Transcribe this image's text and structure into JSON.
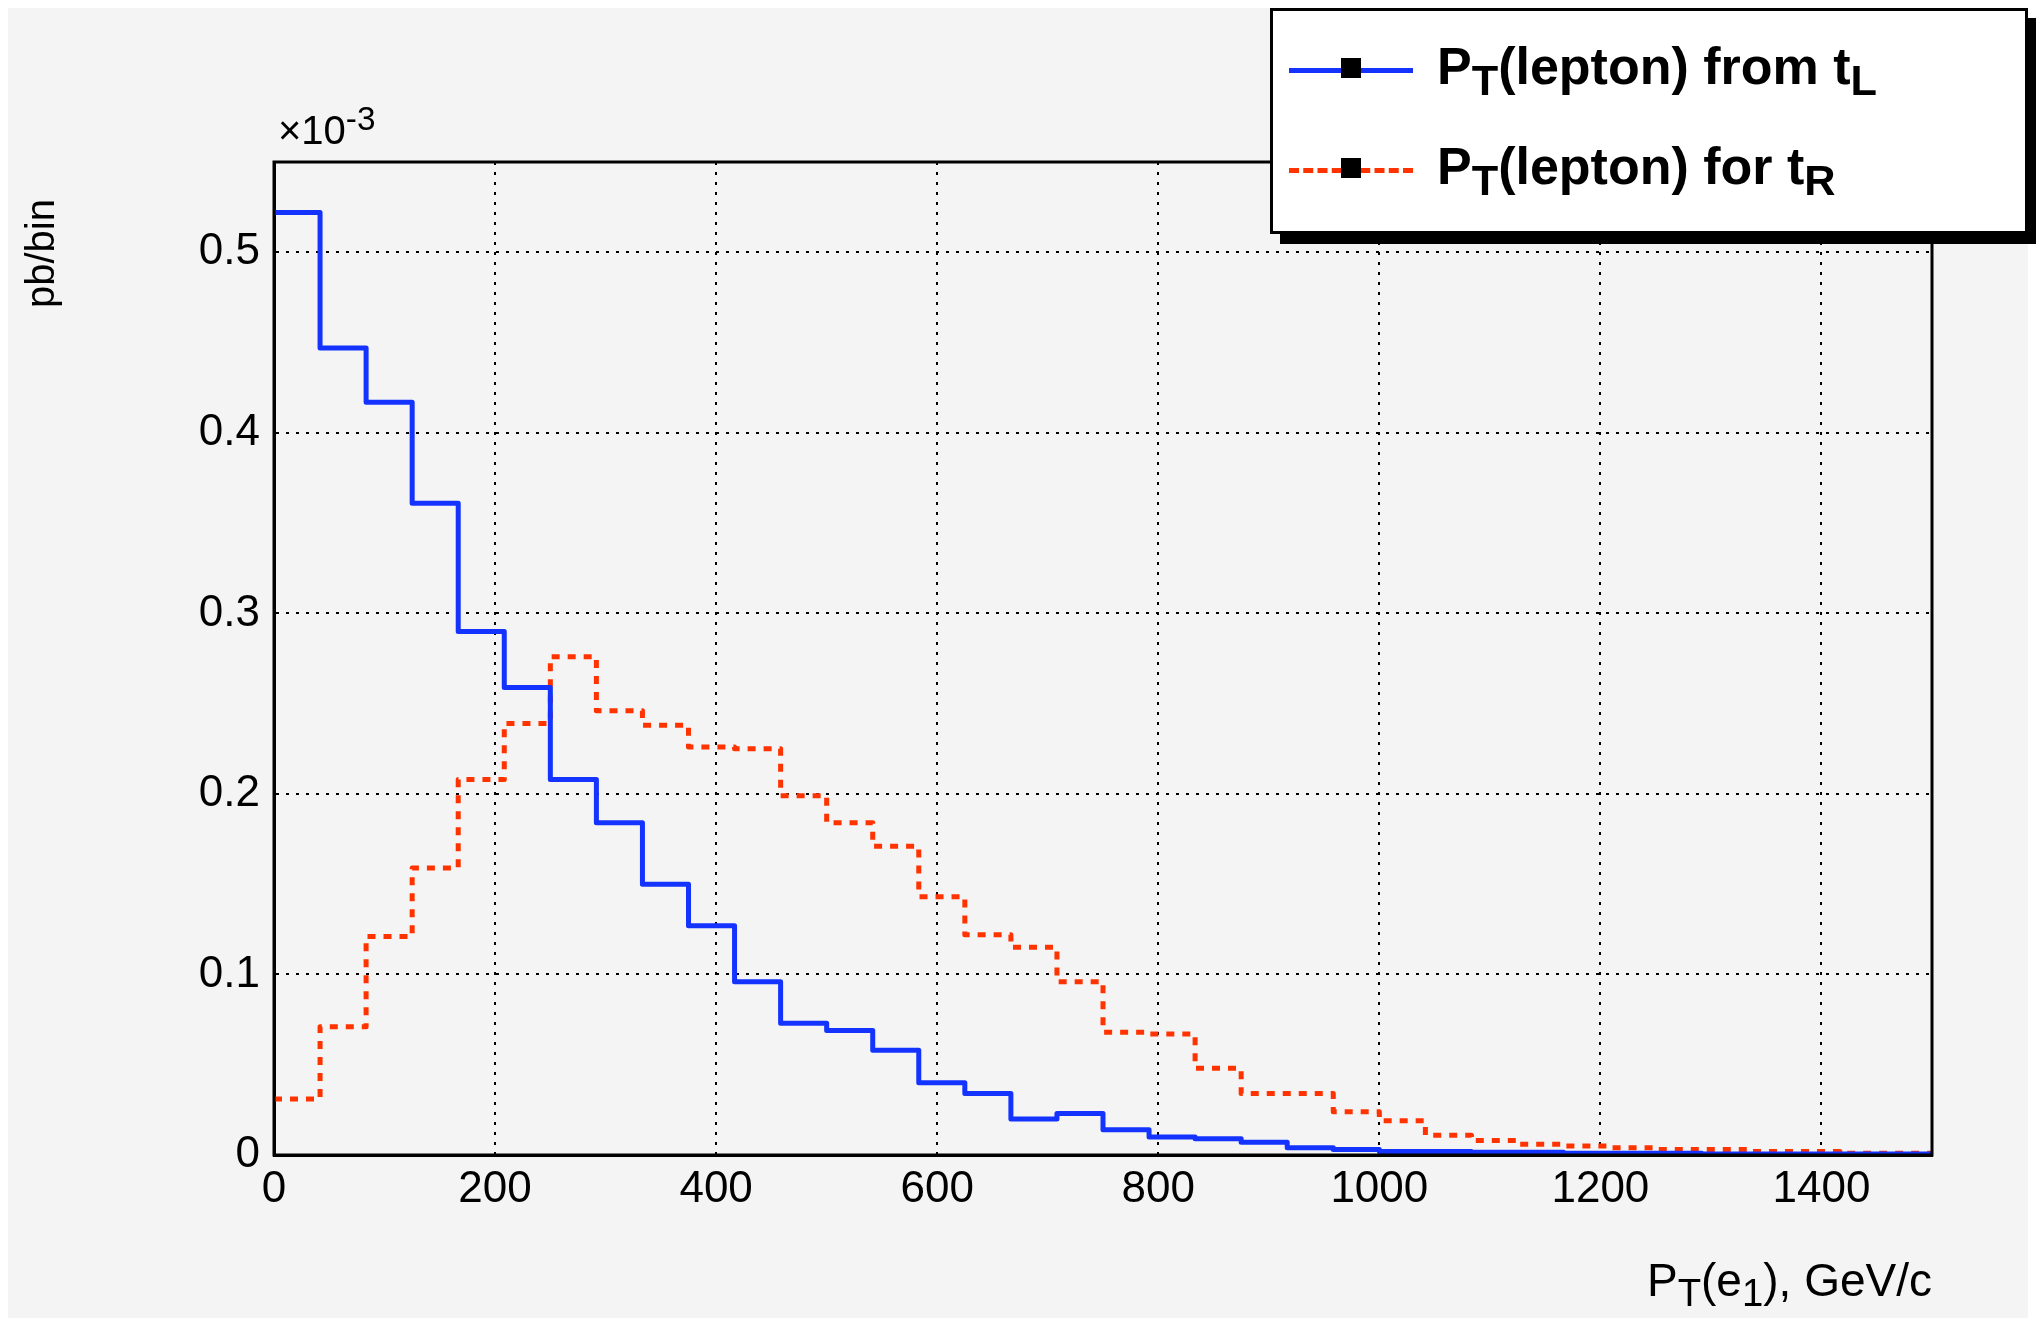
{
  "chart_data": {
    "type": "histogram",
    "xlabel": "P$_{T}$(e$_{1}$), GeV/c",
    "ylabel": "pb/bin",
    "annotations": [
      "×10$^{-3}$"
    ],
    "bins": [
      0,
      41.67,
      83.33,
      125,
      166.67,
      208.33,
      250,
      291.67,
      333.33,
      375,
      416.67,
      458.33,
      500,
      541.67,
      583.33,
      625,
      666.67,
      708.33,
      750,
      791.67,
      833.33,
      875,
      916.67,
      958.33,
      1000,
      1041.67,
      1083.33,
      1125,
      1166.67,
      1208.33,
      1250,
      1291.67,
      1333.33,
      1375,
      1416.67,
      1458.33,
      1500
    ],
    "series": [
      {
        "name": "P$_{T}$(lepton) from t$_{L}$",
        "color": "#1433ff",
        "line_style": "solid",
        "values": [
          0.522,
          0.447,
          0.417,
          0.361,
          0.29,
          0.259,
          0.208,
          0.184,
          0.15,
          0.127,
          0.096,
          0.073,
          0.069,
          0.058,
          0.04,
          0.034,
          0.02,
          0.023,
          0.014,
          0.01,
          0.009,
          0.007,
          0.004,
          0.003,
          0.002,
          0.002,
          0.0015,
          0.0015,
          0.001,
          0.001,
          0.001,
          0.0005,
          0.0005,
          0.0005,
          0.0005,
          0.0005
        ]
      },
      {
        "name": "P$_{T}$(lepton) for t$_{R}$",
        "color": "#ff3300",
        "line_style": "dotted",
        "values": [
          0.031,
          0.071,
          0.121,
          0.159,
          0.208,
          0.239,
          0.276,
          0.246,
          0.238,
          0.226,
          0.225,
          0.199,
          0.184,
          0.171,
          0.143,
          0.122,
          0.115,
          0.096,
          0.068,
          0.067,
          0.048,
          0.034,
          0.034,
          0.024,
          0.019,
          0.011,
          0.008,
          0.006,
          0.005,
          0.004,
          0.003,
          0.003,
          0.002,
          0.002,
          0.001,
          0.001
        ]
      }
    ],
    "xlim": [
      0,
      1500
    ],
    "ylim": [
      0,
      0.55
    ],
    "xticks": [
      0,
      200,
      400,
      600,
      800,
      1000,
      1200,
      1400
    ],
    "yticks": [
      0,
      0.1,
      0.2,
      0.3,
      0.4,
      0.5
    ],
    "grid": true,
    "legend": "top right"
  }
}
